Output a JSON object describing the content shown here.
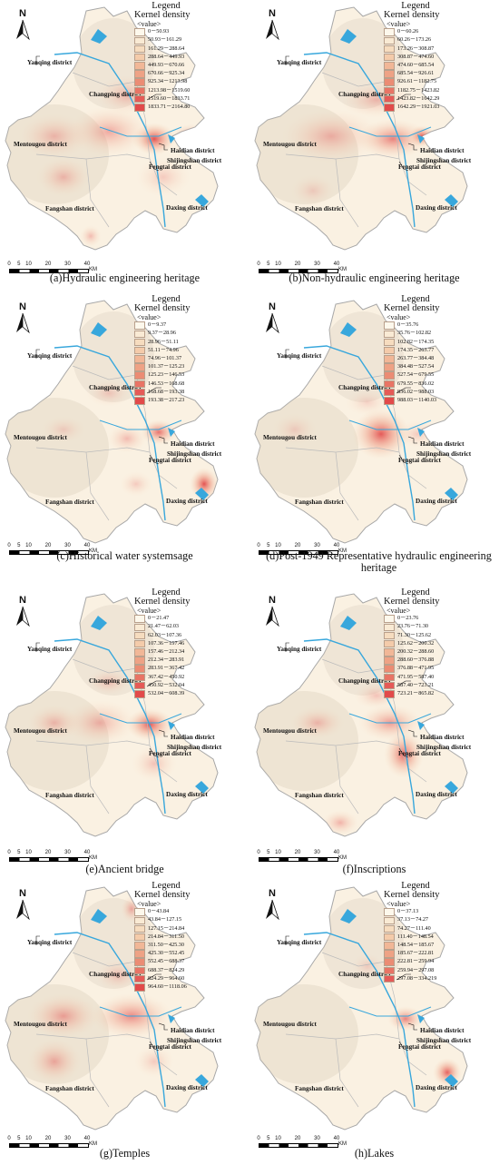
{
  "legend_common": {
    "title": "Legend",
    "subtitle": "Kernel density",
    "value_label": "<value>",
    "swatch_colors": [
      "#fdf8ec",
      "#f9ead4",
      "#f6dcbf",
      "#f4cbaa",
      "#f1b797",
      "#eea285",
      "#eb8c74",
      "#e87465",
      "#e55a57",
      "#e24a4a"
    ]
  },
  "district_labels": {
    "yanqing": "Yanqing district",
    "changping": "Changping district",
    "mentougou": "Mentougou district",
    "haidian": "Haidian district",
    "shijingshan": "Shijingshan district",
    "fengtai": "Fengtai district",
    "fangshan": "Fangshan district",
    "daxing": "Daxing district"
  },
  "north_label": "N",
  "scale_bar": {
    "ticks": [
      "0",
      "5",
      "10",
      "20",
      "30",
      "40"
    ],
    "unit": "KM"
  },
  "panels": [
    {
      "caption": "(a)Hydraulic engineering heritage",
      "legend": [
        "0－50.93",
        "50.93－161.29",
        "161.29－288.64",
        "288.64－449.93",
        "449.93－670.66",
        "670.66－925.34",
        "925.34－1213.98",
        "1213.98－1519.60",
        "1519.60－1833.71",
        "1833.71－2164.80"
      ]
    },
    {
      "caption": "(b)Non-hydraulic engineering heritage",
      "legend": [
        "0－60.26",
        "60.26－173.26",
        "173.26－308.87",
        "308.87－474.60",
        "474.60－685.54",
        "685.54－926.61",
        "926.61－1182.75",
        "1182.75－1423.82",
        "1423.82－1642.29",
        "1642.29－1921.03"
      ]
    },
    {
      "caption": "(c)Historical water systemsage",
      "legend": [
        "0－9.37",
        "9.37－28.96",
        "28.96－51.11",
        "51.11－74.96",
        "74.96－101.37",
        "101.37－125.23",
        "125.23－146.53",
        "146.53－168.68",
        "168.68－193.38",
        "193.38－217.23"
      ]
    },
    {
      "caption": "(d)Post-1949 Representative hydraulic engineering heritage",
      "legend": [
        "0－35.76",
        "35.76－102.82",
        "102.82－174.35",
        "174.35－263.77",
        "263.77－384.48",
        "384.48－527.54",
        "527.54－679.55",
        "679.55－836.02",
        "836.02－988.03",
        "988.03－1140.03"
      ]
    },
    {
      "caption": "(e)Ancient bridge",
      "legend": [
        "0－21.47",
        "21.47－62.03",
        "62.03－107.36",
        "107.36－157.46",
        "157.46－212.34",
        "212.34－283.91",
        "283.91－367.42",
        "367.42－450.92",
        "450.92－532.04",
        "532.04－608.39"
      ]
    },
    {
      "caption": "(f)Inscriptions",
      "legend": [
        "0－23.76",
        "23.76－71.30",
        "71.30－125.62",
        "125.62－200.32",
        "200.32－288.60",
        "288.60－376.88",
        "376.88－471.95",
        "471.95－587.40",
        "587.40－723.21",
        "723.21－865.82"
      ]
    },
    {
      "caption": "(g)Temples",
      "legend": [
        "0－43.84",
        "43.84－127.15",
        "127.15－214.84",
        "214.84－311.50",
        "311.50－425.30",
        "425.30－552.45",
        "552.45－688.37",
        "688.37－824.29",
        "824.29－964.60",
        "964.60－1118.06"
      ]
    },
    {
      "caption": "(h)Lakes",
      "legend": [
        "0－37.13",
        "37.13－74.27",
        "74.27－111.40",
        "111.40－148.54",
        "148.54－185.67",
        "185.67－222.81",
        "222.81－259.94",
        "259.94－297.08",
        "297.08－334.219"
      ]
    }
  ]
}
